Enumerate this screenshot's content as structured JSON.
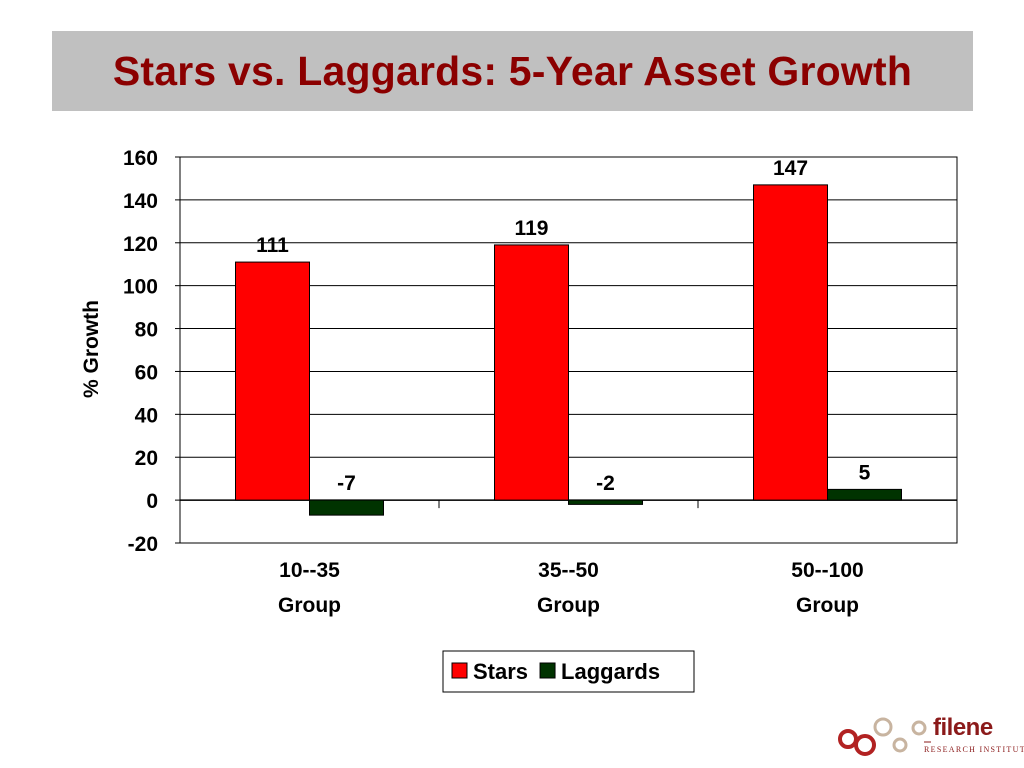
{
  "slide": {
    "title": "Stars vs. Laggards: 5-Year Asset Growth"
  },
  "chart_data": {
    "type": "bar",
    "categories": [
      [
        "10--35",
        "Group"
      ],
      [
        "35--50",
        "Group"
      ],
      [
        "50--100",
        "Group"
      ]
    ],
    "series": [
      {
        "name": "Stars",
        "color": "#ff0000",
        "values": [
          111,
          119,
          147
        ],
        "labels": [
          "111",
          "119",
          "147"
        ]
      },
      {
        "name": "Laggards",
        "color": "#003300",
        "values": [
          -7,
          -2,
          5
        ],
        "labels": [
          "-7",
          "-2",
          "5"
        ]
      }
    ],
    "ylabel": "% Growth",
    "ylim": [
      -20,
      160
    ],
    "yticks": [
      -20,
      0,
      20,
      40,
      60,
      80,
      100,
      120,
      140,
      160
    ],
    "grid": true,
    "legend": "bottom-center"
  },
  "logo": {
    "name": "filene",
    "tagline": "RESEARCH INSTITUTE"
  }
}
